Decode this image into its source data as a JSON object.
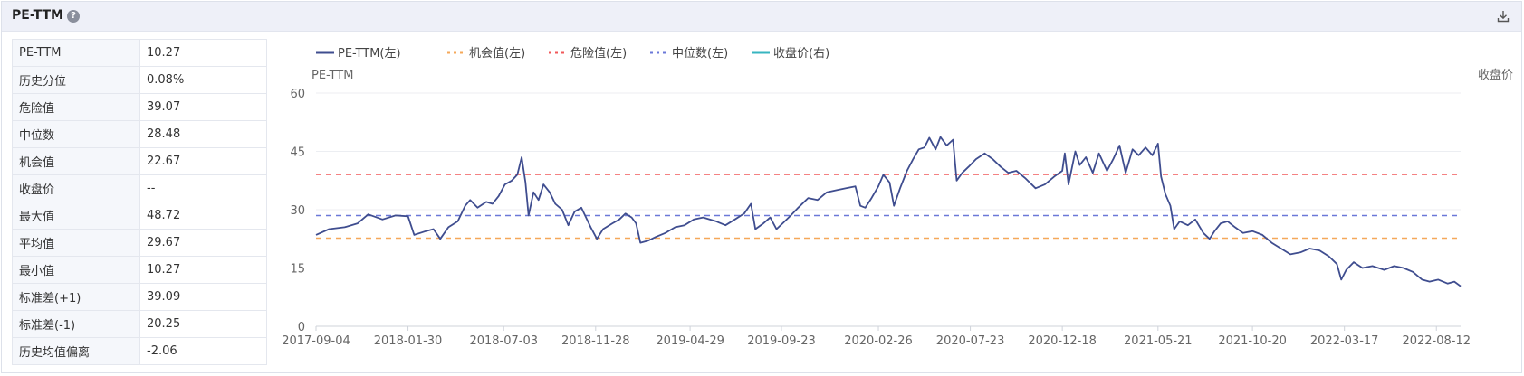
{
  "header": {
    "title": "PE-TTM",
    "help_icon": "question-circle-icon",
    "download_icon": "download-icon"
  },
  "stats": [
    {
      "label": "PE-TTM",
      "value": "10.27"
    },
    {
      "label": "历史分位",
      "value": "0.08%"
    },
    {
      "label": "危险值",
      "value": "39.07"
    },
    {
      "label": "中位数",
      "value": "28.48"
    },
    {
      "label": "机会值",
      "value": "22.67"
    },
    {
      "label": "收盘价",
      "value": "--"
    },
    {
      "label": "最大值",
      "value": "48.72"
    },
    {
      "label": "平均值",
      "value": "29.67"
    },
    {
      "label": "最小值",
      "value": "10.27"
    },
    {
      "label": "标准差(+1)",
      "value": "39.09"
    },
    {
      "label": "标准差(-1)",
      "value": "20.25"
    },
    {
      "label": "历史均值偏离",
      "value": "-2.06"
    }
  ],
  "chart_data": {
    "type": "line",
    "ylabel_left": "PE-TTM",
    "ylabel_right": "收盘价",
    "ylim": [
      0,
      60
    ],
    "yticks": [
      "0",
      "15",
      "30",
      "45",
      "60"
    ],
    "xticks": [
      "2017-09-04",
      "2018-01-30",
      "2018-07-03",
      "2018-11-28",
      "2019-04-29",
      "2019-09-23",
      "2020-02-26",
      "2020-07-23",
      "2020-12-18",
      "2021-05-21",
      "2021-10-20",
      "2022-03-17",
      "2022-08-12"
    ],
    "legend_position": "top-left",
    "legend": [
      {
        "name": "PE-TTM(左)",
        "color": "#3f4d8f",
        "style": "solid"
      },
      {
        "name": "机会值(左)",
        "color": "#f5a85a",
        "style": "dashed"
      },
      {
        "name": "危险值(左)",
        "color": "#f0585a",
        "style": "dashed"
      },
      {
        "name": "中位数(左)",
        "color": "#6b78d8",
        "style": "dashed"
      },
      {
        "name": "收盘价(右)",
        "color": "#37b5c0",
        "style": "solid"
      }
    ],
    "reference_lines": [
      {
        "name": "机会值(左)",
        "value": 22.67,
        "color": "#f5a85a"
      },
      {
        "name": "危险值(左)",
        "value": 39.07,
        "color": "#f0585a"
      },
      {
        "name": "中位数(左)",
        "value": 28.48,
        "color": "#6b78d8"
      }
    ],
    "series": [
      {
        "name": "PE-TTM(左)",
        "color": "#3f4d8f",
        "points": [
          [
            "2017-09-04",
            23.5
          ],
          [
            "2017-09-25",
            25.0
          ],
          [
            "2017-10-20",
            25.5
          ],
          [
            "2017-11-10",
            26.5
          ],
          [
            "2017-11-27",
            28.8
          ],
          [
            "2017-12-20",
            27.5
          ],
          [
            "2018-01-10",
            28.5
          ],
          [
            "2018-01-30",
            28.3
          ],
          [
            "2018-02-09",
            23.5
          ],
          [
            "2018-02-28",
            24.5
          ],
          [
            "2018-03-12",
            25.0
          ],
          [
            "2018-03-23",
            22.5
          ],
          [
            "2018-04-05",
            25.5
          ],
          [
            "2018-04-20",
            27.0
          ],
          [
            "2018-05-02",
            31.0
          ],
          [
            "2018-05-10",
            32.5
          ],
          [
            "2018-05-22",
            30.5
          ],
          [
            "2018-06-05",
            32.0
          ],
          [
            "2018-06-15",
            31.5
          ],
          [
            "2018-06-25",
            33.5
          ],
          [
            "2018-07-05",
            36.5
          ],
          [
            "2018-07-16",
            37.5
          ],
          [
            "2018-07-25",
            39.0
          ],
          [
            "2018-08-01",
            43.5
          ],
          [
            "2018-08-07",
            37.0
          ],
          [
            "2018-08-12",
            28.5
          ],
          [
            "2018-08-20",
            34.5
          ],
          [
            "2018-08-28",
            32.5
          ],
          [
            "2018-09-05",
            36.5
          ],
          [
            "2018-09-15",
            34.5
          ],
          [
            "2018-09-24",
            31.5
          ],
          [
            "2018-10-05",
            30.0
          ],
          [
            "2018-10-15",
            26.0
          ],
          [
            "2018-10-25",
            29.5
          ],
          [
            "2018-11-05",
            30.5
          ],
          [
            "2018-11-20",
            25.5
          ],
          [
            "2018-11-30",
            22.5
          ],
          [
            "2018-12-10",
            25.0
          ],
          [
            "2018-12-25",
            26.5
          ],
          [
            "2019-01-05",
            27.5
          ],
          [
            "2019-01-15",
            29.0
          ],
          [
            "2019-01-25",
            28.0
          ],
          [
            "2019-02-01",
            26.5
          ],
          [
            "2019-02-08",
            21.5
          ],
          [
            "2019-02-20",
            22.0
          ],
          [
            "2019-03-05",
            23.0
          ],
          [
            "2019-03-20",
            24.0
          ],
          [
            "2019-04-05",
            25.5
          ],
          [
            "2019-04-20",
            26.0
          ],
          [
            "2019-05-05",
            27.5
          ],
          [
            "2019-05-20",
            28.0
          ],
          [
            "2019-06-10",
            27.0
          ],
          [
            "2019-06-25",
            26.0
          ],
          [
            "2019-07-10",
            27.5
          ],
          [
            "2019-07-25",
            29.0
          ],
          [
            "2019-08-05",
            31.5
          ],
          [
            "2019-08-12",
            25.0
          ],
          [
            "2019-08-25",
            26.5
          ],
          [
            "2019-09-05",
            28.0
          ],
          [
            "2019-09-15",
            25.0
          ],
          [
            "2019-09-25",
            26.5
          ],
          [
            "2019-10-08",
            28.5
          ],
          [
            "2019-10-20",
            30.5
          ],
          [
            "2019-11-05",
            33.0
          ],
          [
            "2019-11-20",
            32.5
          ],
          [
            "2019-12-05",
            34.5
          ],
          [
            "2019-12-20",
            35.0
          ],
          [
            "2020-01-05",
            35.5
          ],
          [
            "2020-01-20",
            36.0
          ],
          [
            "2020-01-28",
            31.0
          ],
          [
            "2020-02-05",
            30.5
          ],
          [
            "2020-02-15",
            33.0
          ],
          [
            "2020-02-26",
            36.0
          ],
          [
            "2020-03-05",
            39.0
          ],
          [
            "2020-03-15",
            37.0
          ],
          [
            "2020-03-22",
            31.0
          ],
          [
            "2020-04-01",
            35.5
          ],
          [
            "2020-04-12",
            40.0
          ],
          [
            "2020-04-22",
            43.0
          ],
          [
            "2020-05-01",
            45.5
          ],
          [
            "2020-05-10",
            46.0
          ],
          [
            "2020-05-18",
            48.5
          ],
          [
            "2020-05-28",
            45.5
          ],
          [
            "2020-06-05",
            48.7
          ],
          [
            "2020-06-15",
            46.5
          ],
          [
            "2020-06-25",
            48.0
          ],
          [
            "2020-07-01",
            37.5
          ],
          [
            "2020-07-10",
            39.5
          ],
          [
            "2020-07-20",
            41.0
          ],
          [
            "2020-08-01",
            43.0
          ],
          [
            "2020-08-15",
            44.5
          ],
          [
            "2020-08-28",
            43.0
          ],
          [
            "2020-09-10",
            41.0
          ],
          [
            "2020-09-22",
            39.5
          ],
          [
            "2020-10-05",
            40.0
          ],
          [
            "2020-10-20",
            38.0
          ],
          [
            "2020-11-05",
            35.5
          ],
          [
            "2020-11-20",
            36.5
          ],
          [
            "2020-12-05",
            38.5
          ],
          [
            "2020-12-18",
            40.0
          ],
          [
            "2020-12-22",
            44.5
          ],
          [
            "2020-12-28",
            36.5
          ],
          [
            "2021-01-08",
            45.0
          ],
          [
            "2021-01-15",
            41.5
          ],
          [
            "2021-01-25",
            43.5
          ],
          [
            "2021-02-05",
            39.5
          ],
          [
            "2021-02-15",
            44.5
          ],
          [
            "2021-02-28",
            40.0
          ],
          [
            "2021-03-10",
            43.0
          ],
          [
            "2021-03-20",
            46.5
          ],
          [
            "2021-03-30",
            39.5
          ],
          [
            "2021-04-10",
            45.5
          ],
          [
            "2021-04-20",
            44.0
          ],
          [
            "2021-05-01",
            46.0
          ],
          [
            "2021-05-12",
            44.0
          ],
          [
            "2021-05-21",
            47.0
          ],
          [
            "2021-05-26",
            38.5
          ],
          [
            "2021-06-02",
            34.0
          ],
          [
            "2021-06-10",
            31.0
          ],
          [
            "2021-06-16",
            25.0
          ],
          [
            "2021-06-25",
            27.0
          ],
          [
            "2021-07-08",
            26.0
          ],
          [
            "2021-07-20",
            27.5
          ],
          [
            "2021-08-02",
            24.0
          ],
          [
            "2021-08-12",
            22.5
          ],
          [
            "2021-08-20",
            24.5
          ],
          [
            "2021-08-30",
            26.5
          ],
          [
            "2021-09-10",
            27.0
          ],
          [
            "2021-09-22",
            25.5
          ],
          [
            "2021-10-05",
            24.0
          ],
          [
            "2021-10-20",
            24.5
          ],
          [
            "2021-11-05",
            23.5
          ],
          [
            "2021-11-20",
            21.5
          ],
          [
            "2021-12-05",
            20.0
          ],
          [
            "2021-12-20",
            18.5
          ],
          [
            "2022-01-05",
            19.0
          ],
          [
            "2022-01-20",
            20.0
          ],
          [
            "2022-02-05",
            19.5
          ],
          [
            "2022-02-20",
            18.0
          ],
          [
            "2022-03-05",
            16.0
          ],
          [
            "2022-03-12",
            12.0
          ],
          [
            "2022-03-20",
            14.5
          ],
          [
            "2022-04-01",
            16.5
          ],
          [
            "2022-04-15",
            15.0
          ],
          [
            "2022-05-01",
            15.5
          ],
          [
            "2022-05-20",
            14.5
          ],
          [
            "2022-06-05",
            15.5
          ],
          [
            "2022-06-20",
            15.0
          ],
          [
            "2022-07-05",
            14.0
          ],
          [
            "2022-07-20",
            12.0
          ],
          [
            "2022-08-01",
            11.5
          ],
          [
            "2022-08-15",
            12.0
          ],
          [
            "2022-08-30",
            11.0
          ],
          [
            "2022-09-10",
            11.5
          ],
          [
            "2022-09-20",
            10.3
          ]
        ]
      },
      {
        "name": "收盘价(右)",
        "color": "#37b5c0",
        "points": []
      }
    ]
  }
}
